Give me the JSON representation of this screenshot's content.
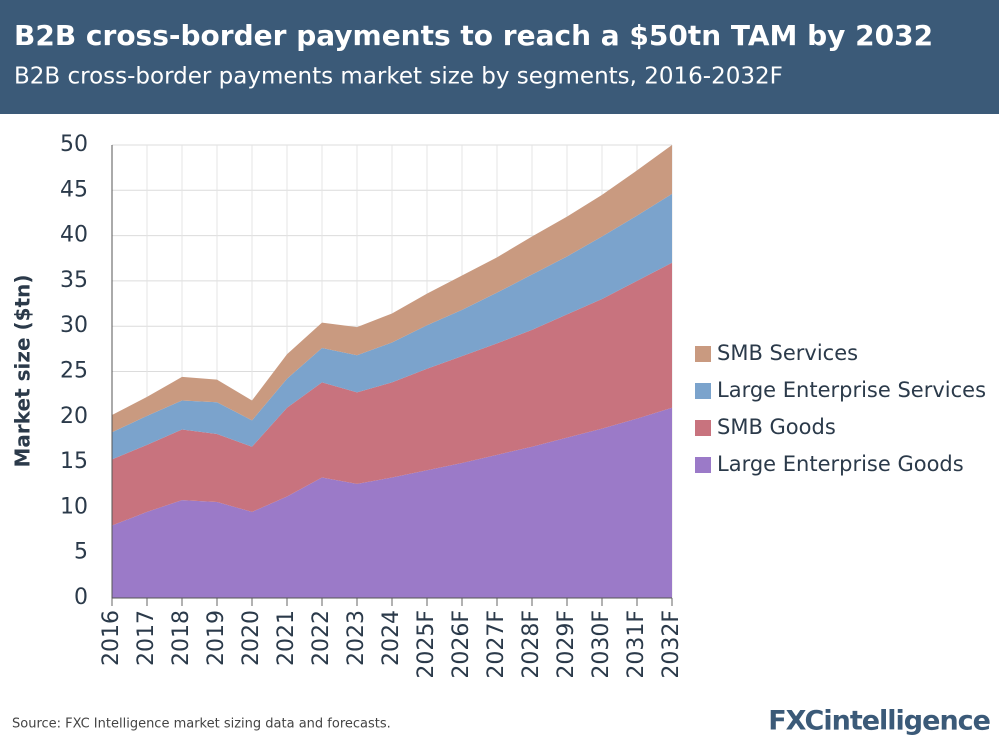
{
  "chart_data": {
    "type": "stacked_area",
    "title": "B2B cross-border payments to reach a $50tn TAM by 2032",
    "subtitle": "B2B cross-border payments market size by segments, 2016-2032F",
    "y_label": "Market size ($tn)",
    "source": "Source: FXC Intelligence market sizing data and forecasts.",
    "brand": "FXCintelligence",
    "categories": [
      "2016",
      "2017",
      "2018",
      "2019",
      "2020",
      "2021",
      "2022",
      "2023",
      "2024",
      "2025F",
      "2026F",
      "2027F",
      "2028F",
      "2029F",
      "2030F",
      "2031F",
      "2032F"
    ],
    "series": [
      {
        "name": "Large Enterprise Goods",
        "color": "#9b7ac8",
        "values": [
          8.0,
          9.5,
          10.8,
          10.6,
          9.5,
          11.2,
          13.3,
          12.6,
          13.3,
          14.1,
          14.9,
          15.8,
          16.7,
          17.7,
          18.7,
          19.8,
          21.0
        ]
      },
      {
        "name": "SMB Goods",
        "color": "#c8737e",
        "values": [
          7.3,
          7.4,
          7.8,
          7.5,
          7.2,
          9.8,
          10.5,
          10.1,
          10.5,
          11.2,
          11.8,
          12.3,
          12.9,
          13.6,
          14.3,
          15.2,
          16.0
        ]
      },
      {
        "name": "Large Enterprise Services",
        "color": "#7ba3cc",
        "values": [
          3.0,
          3.2,
          3.2,
          3.5,
          2.9,
          3.2,
          3.8,
          4.1,
          4.4,
          4.8,
          5.1,
          5.6,
          6.1,
          6.4,
          6.9,
          7.2,
          7.6
        ]
      },
      {
        "name": "SMB Services",
        "color": "#c99a80",
        "values": [
          1.9,
          2.1,
          2.6,
          2.5,
          2.2,
          2.7,
          2.8,
          3.1,
          3.2,
          3.5,
          3.8,
          3.9,
          4.2,
          4.4,
          4.6,
          5.0,
          5.4
        ]
      }
    ],
    "ylim": [
      0,
      50
    ],
    "yticks": [
      0,
      5,
      10,
      15,
      20,
      25,
      30,
      35,
      40,
      45,
      50
    ],
    "grid": true
  }
}
